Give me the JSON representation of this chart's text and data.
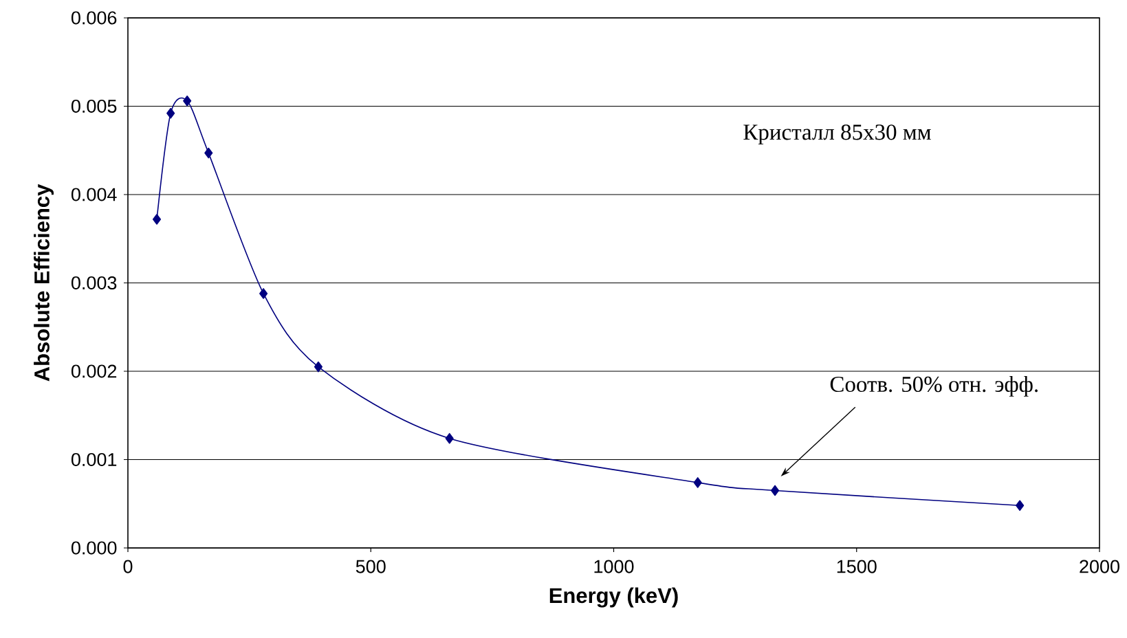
{
  "chart_data": {
    "type": "line",
    "xlabel": "Energy (keV)",
    "ylabel": "Absolute Efficiency",
    "x": [
      59.5,
      88,
      122,
      166,
      279,
      392,
      662,
      1173,
      1332,
      1836
    ],
    "series": [
      {
        "color": "#000080",
        "values": [
          0.00372,
          0.00492,
          0.00506,
          0.00447,
          0.00288,
          0.00205,
          0.00124,
          0.00074,
          0.00065,
          0.00048
        ]
      }
    ],
    "xlim": [
      0,
      2000
    ],
    "xticks": [
      0,
      500,
      1000,
      1500,
      2000
    ],
    "ylim": [
      0,
      0.006
    ],
    "yticks": [
      {
        "value": 0,
        "label": "0.000"
      },
      {
        "value": 0.001,
        "label": "0.001"
      },
      {
        "value": 0.002,
        "label": "0.002"
      },
      {
        "value": 0.003,
        "label": "0.003"
      },
      {
        "value": 0.004,
        "label": "0.004"
      },
      {
        "value": 0.005,
        "label": "0.005"
      },
      {
        "value": 0.006,
        "label": "0.006"
      }
    ],
    "grid": "y",
    "marker": "diamond",
    "line_style": "solid",
    "annotations": [
      "Кристалл 85x30 мм",
      "Соотв. 50% отн. эфф."
    ]
  }
}
